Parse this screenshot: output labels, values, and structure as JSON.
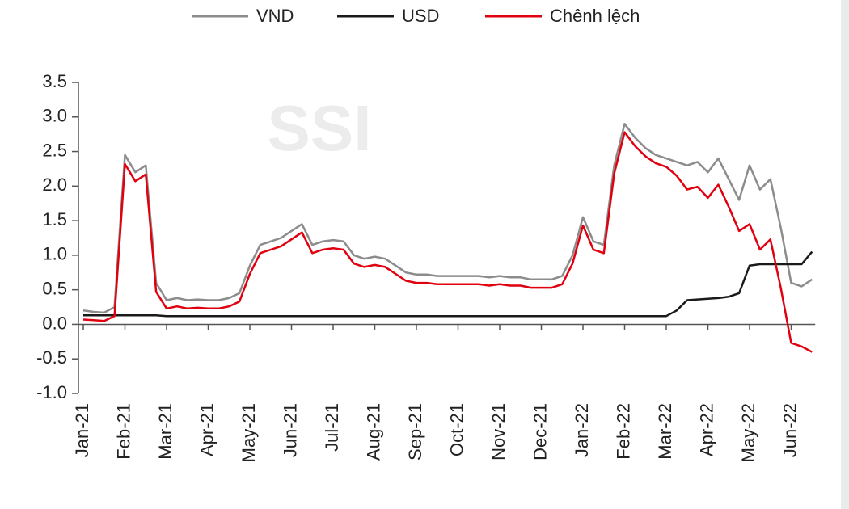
{
  "chart_data": {
    "type": "line",
    "watermark": "SSI",
    "categories": [
      "Jan-21",
      null,
      null,
      null,
      "Feb-21",
      null,
      null,
      null,
      "Mar-21",
      null,
      null,
      null,
      "Apr-21",
      null,
      null,
      null,
      "May-21",
      null,
      null,
      null,
      "Jun-21",
      null,
      null,
      null,
      "Jul-21",
      null,
      null,
      null,
      "Aug-21",
      null,
      null,
      null,
      "Sep-21",
      null,
      null,
      null,
      "Oct-21",
      null,
      null,
      null,
      "Nov-21",
      null,
      null,
      null,
      "Dec-21",
      null,
      null,
      null,
      "Jan-22",
      null,
      null,
      null,
      "Feb-22",
      null,
      null,
      null,
      "Mar-22",
      null,
      null,
      null,
      "Apr-22",
      null,
      null,
      null,
      "May-22",
      null,
      null,
      null,
      "Jun-22",
      null,
      null
    ],
    "series": [
      {
        "name": "VND",
        "color": "#8c8c8c",
        "values": [
          0.2,
          0.18,
          0.17,
          0.25,
          2.45,
          2.2,
          2.3,
          0.6,
          0.35,
          0.38,
          0.35,
          0.36,
          0.35,
          0.35,
          0.38,
          0.45,
          0.85,
          1.15,
          1.2,
          1.25,
          1.35,
          1.45,
          1.15,
          1.2,
          1.22,
          1.2,
          1.0,
          0.95,
          0.98,
          0.95,
          0.85,
          0.75,
          0.72,
          0.72,
          0.7,
          0.7,
          0.7,
          0.7,
          0.7,
          0.68,
          0.7,
          0.68,
          0.68,
          0.65,
          0.65,
          0.65,
          0.7,
          1.0,
          1.55,
          1.2,
          1.15,
          2.3,
          2.9,
          2.7,
          2.55,
          2.45,
          2.4,
          2.35,
          2.3,
          2.35,
          2.2,
          2.4,
          2.1,
          1.8,
          2.3,
          1.95,
          2.1,
          1.4,
          0.6,
          0.55,
          0.65
        ]
      },
      {
        "name": "USD",
        "color": "#1a1a1a",
        "values": [
          0.13,
          0.13,
          0.13,
          0.13,
          0.13,
          0.13,
          0.13,
          0.13,
          0.12,
          0.12,
          0.12,
          0.12,
          0.12,
          0.12,
          0.12,
          0.12,
          0.12,
          0.12,
          0.12,
          0.12,
          0.12,
          0.12,
          0.12,
          0.12,
          0.12,
          0.12,
          0.12,
          0.12,
          0.12,
          0.12,
          0.12,
          0.12,
          0.12,
          0.12,
          0.12,
          0.12,
          0.12,
          0.12,
          0.12,
          0.12,
          0.12,
          0.12,
          0.12,
          0.12,
          0.12,
          0.12,
          0.12,
          0.12,
          0.12,
          0.12,
          0.12,
          0.12,
          0.12,
          0.12,
          0.12,
          0.12,
          0.12,
          0.2,
          0.35,
          0.36,
          0.37,
          0.38,
          0.4,
          0.45,
          0.85,
          0.87,
          0.87,
          0.87,
          0.87,
          0.87,
          1.05
        ]
      },
      {
        "name": "Chênh lệch",
        "color": "#e0000f",
        "values": [
          0.07,
          0.06,
          0.05,
          0.12,
          2.32,
          2.07,
          2.17,
          0.47,
          0.23,
          0.26,
          0.23,
          0.24,
          0.23,
          0.23,
          0.26,
          0.33,
          0.73,
          1.03,
          1.08,
          1.13,
          1.23,
          1.33,
          1.03,
          1.08,
          1.1,
          1.08,
          0.88,
          0.83,
          0.86,
          0.83,
          0.73,
          0.63,
          0.6,
          0.6,
          0.58,
          0.58,
          0.58,
          0.58,
          0.58,
          0.56,
          0.58,
          0.56,
          0.56,
          0.53,
          0.53,
          0.53,
          0.58,
          0.88,
          1.43,
          1.08,
          1.03,
          2.18,
          2.78,
          2.58,
          2.43,
          2.33,
          2.28,
          2.15,
          1.95,
          1.99,
          1.83,
          2.02,
          1.7,
          1.35,
          1.45,
          1.08,
          1.23,
          0.53,
          -0.27,
          -0.32,
          -0.4
        ]
      }
    ],
    "ylim": [
      -1,
      3.5
    ],
    "yticks": [
      3.5,
      {
        "value": 3,
        "label": "3.0"
      },
      2.5,
      {
        "value": 2,
        "label": "2.0"
      },
      1.5,
      {
        "value": 1,
        "label": "1.0"
      },
      0.5,
      {
        "value": 0,
        "label": "0.0"
      },
      -0.5,
      {
        "value": -1,
        "label": "-1.0"
      }
    ],
    "legend": "top"
  }
}
